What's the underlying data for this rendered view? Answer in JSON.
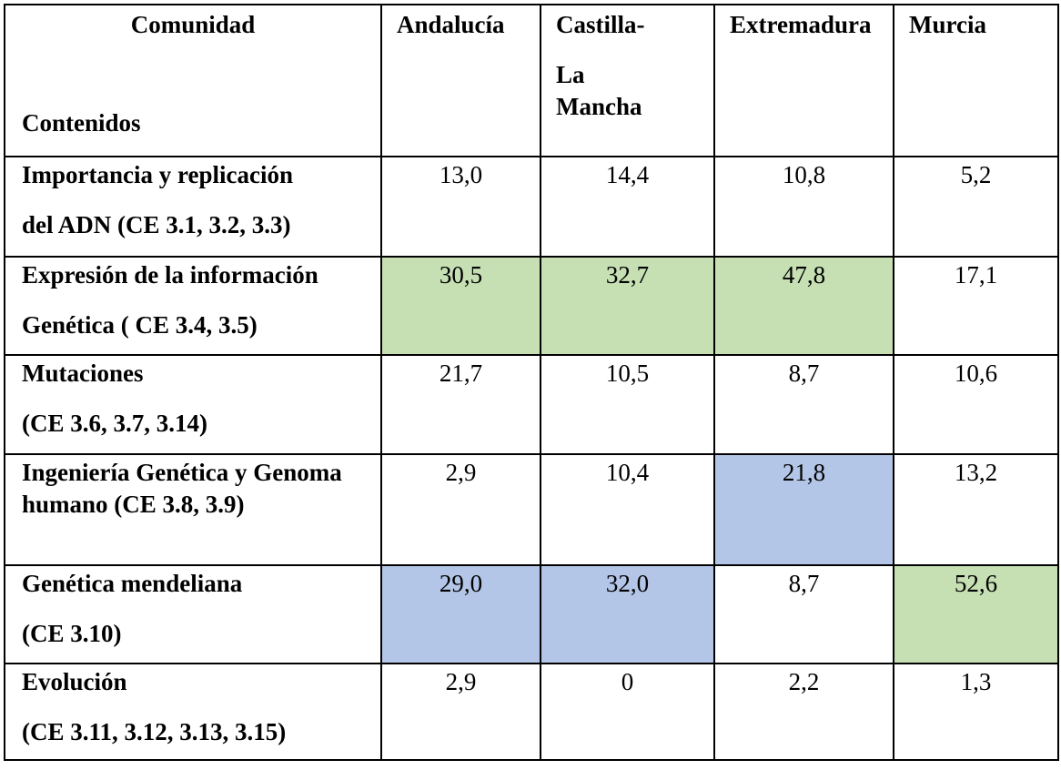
{
  "table": {
    "corner": {
      "top": "Comunidad",
      "bottom": "Contenidos"
    },
    "columns": [
      {
        "label": "Andalucía"
      },
      {
        "lines": [
          "Castilla-",
          "La",
          "Mancha"
        ]
      },
      {
        "label": "Extremadura"
      },
      {
        "label": "Murcia"
      }
    ],
    "rows": [
      {
        "label_lines": [
          "Importancia y replicación",
          "del ADN  (CE 3.1, 3.2, 3.3)"
        ],
        "values": [
          "13,0",
          "14,4",
          "10,8",
          "5,2"
        ],
        "highlights": [
          "none",
          "none",
          "none",
          "none"
        ]
      },
      {
        "label_lines": [
          "Expresión de la información",
          "Genética ( CE 3.4, 3.5)"
        ],
        "values": [
          "30,5",
          "32,7",
          "47,8",
          "17,1"
        ],
        "highlights": [
          "green",
          "green",
          "green",
          "none"
        ]
      },
      {
        "label_lines": [
          "Mutaciones",
          "(CE 3.6, 3.7, 3.14)"
        ],
        "values": [
          "21,7",
          "10,5",
          "8,7",
          "10,6"
        ],
        "highlights": [
          "none",
          "none",
          "none",
          "none"
        ]
      },
      {
        "label_text": "Ingeniería Genética y Genoma humano (CE 3.8, 3.9)",
        "values": [
          "2,9",
          "10,4",
          "21,8",
          "13,2"
        ],
        "highlights": [
          "none",
          "none",
          "blue",
          "none"
        ]
      },
      {
        "label_lines": [
          "Genética mendeliana",
          "(CE 3.10)"
        ],
        "values": [
          "29,0",
          "32,0",
          "8,7",
          "52,6"
        ],
        "highlights": [
          "blue",
          "blue",
          "none",
          "green"
        ]
      },
      {
        "label_lines": [
          "Evolución",
          "(CE 3.11, 3.12, 3.13, 3.15)"
        ],
        "values": [
          "2,9",
          "0",
          "2,2",
          "1,3"
        ],
        "highlights": [
          "none",
          "none",
          "none",
          "none"
        ]
      }
    ],
    "highlight_colors": {
      "green": "#c6e0b4",
      "blue": "#b4c6e7"
    }
  }
}
